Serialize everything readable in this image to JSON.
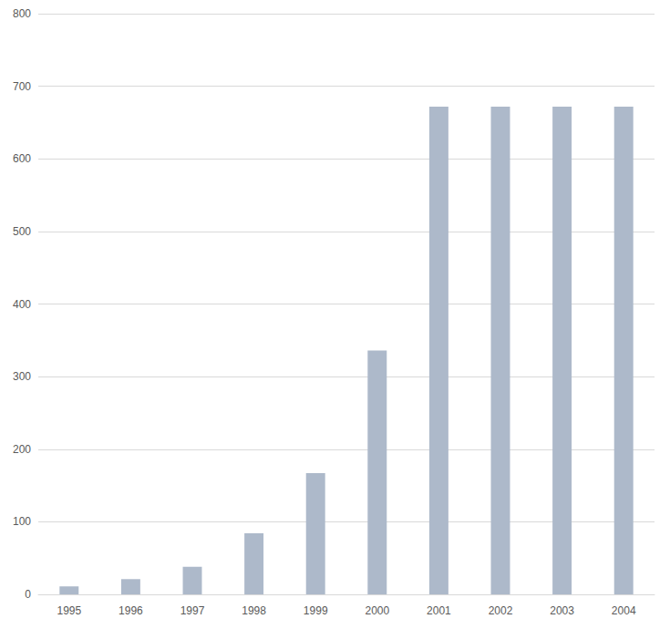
{
  "chart_data": {
    "type": "bar",
    "categories": [
      "1995",
      "1996",
      "1997",
      "1998",
      "1999",
      "2000",
      "2001",
      "2002",
      "2003",
      "2004"
    ],
    "values": [
      11,
      21,
      38,
      84,
      167,
      336,
      672,
      672,
      672,
      672
    ],
    "color": "#adb9ca",
    "ylim": [
      0,
      800
    ],
    "yticks": [
      0,
      100,
      200,
      300,
      400,
      500,
      600,
      700,
      800
    ],
    "grid": true
  }
}
